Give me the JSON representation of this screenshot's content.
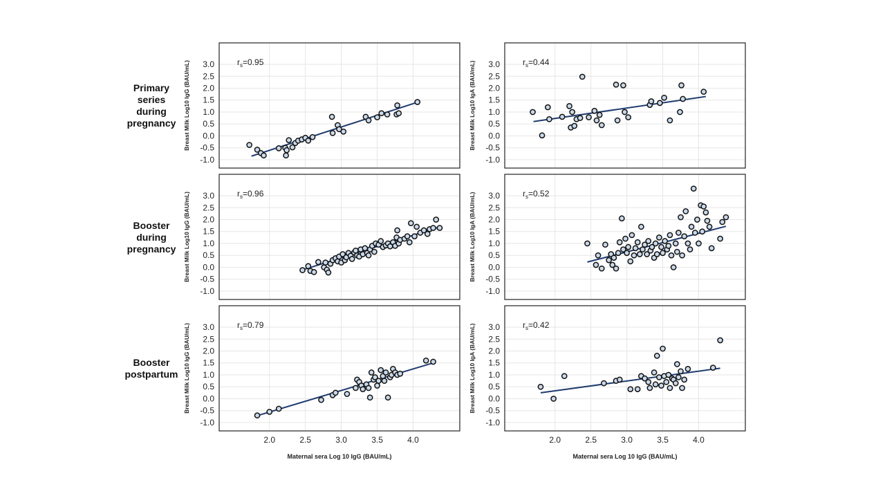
{
  "row_labels": [
    "Primary\nseries\nduring\npregnancy",
    "Booster\nduring\npregnancy",
    "Booster\npostpartum"
  ],
  "x_axis_title": "Maternal sera Log 10 IgG (BAU/mL)",
  "colors": {
    "marker_fill": "#c9d9ea",
    "marker_stroke": "#111111",
    "fit_line": "#1f3b6e",
    "grid": "#e6e6e6",
    "frame": "#222222"
  },
  "chart_data": [
    {
      "type": "scatter",
      "row": 0,
      "col": 0,
      "ylabel": "Breast Milk Log10 IgG (BAU/mL)",
      "annotation": {
        "r_label": "r",
        "r_sub": "s",
        "value": "=0.95"
      },
      "xlim": [
        1.3,
        4.65
      ],
      "ylim": [
        -1.35,
        3.9
      ],
      "xticks": [
        2.0,
        2.5,
        3.0,
        3.5,
        4.0
      ],
      "yticks": [
        -1.0,
        -0.5,
        0.0,
        0.5,
        1.0,
        1.5,
        2.0,
        2.5,
        3.0
      ],
      "fit": [
        [
          1.75,
          -0.85
        ],
        [
          4.05,
          1.4
        ]
      ],
      "points": [
        [
          1.72,
          -0.38
        ],
        [
          1.83,
          -0.58
        ],
        [
          1.88,
          -0.72
        ],
        [
          1.92,
          -0.82
        ],
        [
          2.13,
          -0.52
        ],
        [
          2.22,
          -0.5
        ],
        [
          2.23,
          -0.82
        ],
        [
          2.24,
          -0.6
        ],
        [
          2.27,
          -0.18
        ],
        [
          2.32,
          -0.48
        ],
        [
          2.36,
          -0.3
        ],
        [
          2.4,
          -0.2
        ],
        [
          2.45,
          -0.15
        ],
        [
          2.5,
          -0.08
        ],
        [
          2.54,
          -0.2
        ],
        [
          2.6,
          -0.05
        ],
        [
          2.87,
          0.8
        ],
        [
          2.88,
          0.12
        ],
        [
          2.95,
          0.45
        ],
        [
          2.97,
          0.28
        ],
        [
          3.03,
          0.18
        ],
        [
          3.34,
          0.8
        ],
        [
          3.38,
          0.65
        ],
        [
          3.5,
          0.78
        ],
        [
          3.56,
          0.95
        ],
        [
          3.64,
          0.9
        ],
        [
          3.77,
          0.9
        ],
        [
          3.78,
          1.28
        ],
        [
          3.8,
          0.95
        ],
        [
          4.06,
          1.42
        ]
      ]
    },
    {
      "type": "scatter",
      "row": 0,
      "col": 1,
      "ylabel": "Breast Milk Log10 IgA (BAU/mL)",
      "annotation": {
        "r_label": "r",
        "r_sub": "s",
        "value": "=0.44"
      },
      "xlim": [
        1.3,
        4.65
      ],
      "ylim": [
        -1.35,
        3.9
      ],
      "xticks": [
        2.0,
        2.5,
        3.0,
        3.5,
        4.0
      ],
      "yticks": [
        -1.0,
        -0.5,
        0.0,
        0.5,
        1.0,
        1.5,
        2.0,
        2.5,
        3.0
      ],
      "fit": [
        [
          1.7,
          0.6
        ],
        [
          4.1,
          1.65
        ]
      ],
      "points": [
        [
          1.69,
          1.0
        ],
        [
          1.82,
          0.02
        ],
        [
          1.9,
          1.2
        ],
        [
          1.92,
          0.7
        ],
        [
          2.1,
          0.8
        ],
        [
          2.2,
          1.25
        ],
        [
          2.22,
          0.35
        ],
        [
          2.24,
          1.0
        ],
        [
          2.27,
          0.42
        ],
        [
          2.3,
          0.7
        ],
        [
          2.35,
          0.75
        ],
        [
          2.38,
          2.48
        ],
        [
          2.47,
          0.78
        ],
        [
          2.55,
          1.05
        ],
        [
          2.58,
          0.65
        ],
        [
          2.62,
          0.88
        ],
        [
          2.65,
          0.45
        ],
        [
          2.85,
          2.15
        ],
        [
          2.87,
          0.65
        ],
        [
          2.95,
          2.12
        ],
        [
          2.97,
          1.0
        ],
        [
          3.02,
          0.78
        ],
        [
          3.32,
          1.3
        ],
        [
          3.34,
          1.45
        ],
        [
          3.46,
          1.38
        ],
        [
          3.52,
          1.6
        ],
        [
          3.6,
          0.65
        ],
        [
          3.74,
          1.0
        ],
        [
          3.76,
          2.12
        ],
        [
          3.78,
          1.55
        ],
        [
          4.07,
          1.85
        ]
      ]
    },
    {
      "type": "scatter",
      "row": 1,
      "col": 0,
      "ylabel": "Breast Milk Log10 IgG (BAU/mL)",
      "annotation": {
        "r_label": "r",
        "r_sub": "s",
        "value": "=0.96"
      },
      "xlim": [
        1.3,
        4.65
      ],
      "ylim": [
        -1.35,
        3.9
      ],
      "xticks": [
        2.0,
        2.5,
        3.0,
        3.5,
        4.0
      ],
      "yticks": [
        -1.0,
        -0.5,
        0.0,
        0.5,
        1.0,
        1.5,
        2.0,
        2.5,
        3.0
      ],
      "fit": [
        [
          2.45,
          -0.12
        ],
        [
          4.4,
          1.72
        ]
      ],
      "points": [
        [
          2.46,
          -0.12
        ],
        [
          2.54,
          0.05
        ],
        [
          2.57,
          -0.15
        ],
        [
          2.62,
          -0.2
        ],
        [
          2.68,
          0.22
        ],
        [
          2.76,
          0.0
        ],
        [
          2.78,
          0.2
        ],
        [
          2.8,
          -0.1
        ],
        [
          2.82,
          -0.22
        ],
        [
          2.85,
          0.15
        ],
        [
          2.88,
          0.3
        ],
        [
          2.92,
          0.38
        ],
        [
          2.95,
          0.25
        ],
        [
          2.97,
          0.45
        ],
        [
          3.0,
          0.2
        ],
        [
          3.02,
          0.55
        ],
        [
          3.05,
          0.3
        ],
        [
          3.07,
          0.42
        ],
        [
          3.1,
          0.6
        ],
        [
          3.13,
          0.48
        ],
        [
          3.15,
          0.35
        ],
        [
          3.18,
          0.62
        ],
        [
          3.2,
          0.7
        ],
        [
          3.22,
          0.5
        ],
        [
          3.25,
          0.45
        ],
        [
          3.27,
          0.75
        ],
        [
          3.3,
          0.55
        ],
        [
          3.33,
          0.8
        ],
        [
          3.36,
          0.6
        ],
        [
          3.38,
          0.5
        ],
        [
          3.4,
          0.75
        ],
        [
          3.43,
          0.9
        ],
        [
          3.46,
          0.65
        ],
        [
          3.48,
          1.0
        ],
        [
          3.52,
          0.95
        ],
        [
          3.55,
          1.1
        ],
        [
          3.58,
          0.85
        ],
        [
          3.62,
          0.92
        ],
        [
          3.65,
          1.0
        ],
        [
          3.68,
          0.88
        ],
        [
          3.72,
          1.05
        ],
        [
          3.75,
          0.9
        ],
        [
          3.77,
          1.25
        ],
        [
          3.78,
          1.55
        ],
        [
          3.8,
          1.0
        ],
        [
          3.82,
          1.15
        ],
        [
          3.88,
          1.2
        ],
        [
          3.92,
          1.3
        ],
        [
          3.95,
          1.05
        ],
        [
          3.97,
          1.85
        ],
        [
          4.02,
          1.3
        ],
        [
          4.05,
          1.7
        ],
        [
          4.1,
          1.45
        ],
        [
          4.15,
          1.55
        ],
        [
          4.2,
          1.4
        ],
        [
          4.23,
          1.6
        ],
        [
          4.28,
          1.65
        ],
        [
          4.32,
          2.0
        ],
        [
          4.37,
          1.65
        ]
      ]
    },
    {
      "type": "scatter",
      "row": 1,
      "col": 1,
      "ylabel": "Breast Milk Log10 IgA (BAU/mL)",
      "annotation": {
        "r_label": "r",
        "r_sub": "s",
        "value": "=0.52"
      },
      "xlim": [
        1.3,
        4.65
      ],
      "ylim": [
        -1.35,
        3.9
      ],
      "xticks": [
        2.0,
        2.5,
        3.0,
        3.5,
        4.0
      ],
      "yticks": [
        -1.0,
        -0.5,
        0.0,
        0.5,
        1.0,
        1.5,
        2.0,
        2.5,
        3.0
      ],
      "fit": [
        [
          2.45,
          0.22
        ],
        [
          4.38,
          1.72
        ]
      ],
      "points": [
        [
          2.45,
          1.0
        ],
        [
          2.57,
          0.1
        ],
        [
          2.6,
          0.5
        ],
        [
          2.65,
          -0.05
        ],
        [
          2.7,
          0.95
        ],
        [
          2.75,
          0.3
        ],
        [
          2.78,
          0.55
        ],
        [
          2.8,
          0.1
        ],
        [
          2.82,
          0.4
        ],
        [
          2.85,
          -0.05
        ],
        [
          2.88,
          0.6
        ],
        [
          2.9,
          1.05
        ],
        [
          2.93,
          2.05
        ],
        [
          2.95,
          0.75
        ],
        [
          2.98,
          1.2
        ],
        [
          3.0,
          0.6
        ],
        [
          3.02,
          0.85
        ],
        [
          3.05,
          0.25
        ],
        [
          3.07,
          1.35
        ],
        [
          3.1,
          0.5
        ],
        [
          3.12,
          0.8
        ],
        [
          3.15,
          1.05
        ],
        [
          3.18,
          0.55
        ],
        [
          3.2,
          1.7
        ],
        [
          3.22,
          0.75
        ],
        [
          3.25,
          0.95
        ],
        [
          3.28,
          0.55
        ],
        [
          3.3,
          1.1
        ],
        [
          3.33,
          0.7
        ],
        [
          3.35,
          0.85
        ],
        [
          3.38,
          0.4
        ],
        [
          3.4,
          1.0
        ],
        [
          3.42,
          0.55
        ],
        [
          3.45,
          1.25
        ],
        [
          3.48,
          0.85
        ],
        [
          3.5,
          0.6
        ],
        [
          3.53,
          1.1
        ],
        [
          3.56,
          0.75
        ],
        [
          3.58,
          0.9
        ],
        [
          3.6,
          1.35
        ],
        [
          3.62,
          0.5
        ],
        [
          3.65,
          0.0
        ],
        [
          3.68,
          1.0
        ],
        [
          3.7,
          0.65
        ],
        [
          3.72,
          1.45
        ],
        [
          3.75,
          2.1
        ],
        [
          3.77,
          0.5
        ],
        [
          3.8,
          1.3
        ],
        [
          3.82,
          2.35
        ],
        [
          3.85,
          1.0
        ],
        [
          3.88,
          0.75
        ],
        [
          3.9,
          1.7
        ],
        [
          3.93,
          3.3
        ],
        [
          3.95,
          1.45
        ],
        [
          3.98,
          2.0
        ],
        [
          4.0,
          1.0
        ],
        [
          4.03,
          2.6
        ],
        [
          4.05,
          1.5
        ],
        [
          4.07,
          2.55
        ],
        [
          4.1,
          2.3
        ],
        [
          4.12,
          1.95
        ],
        [
          4.15,
          1.7
        ],
        [
          4.18,
          0.8
        ],
        [
          4.3,
          1.2
        ],
        [
          4.33,
          1.9
        ],
        [
          4.38,
          2.1
        ]
      ]
    },
    {
      "type": "scatter",
      "row": 2,
      "col": 0,
      "ylabel": "Breast Milk Log10 IgG (BAU/mL)",
      "annotation": {
        "r_label": "r",
        "r_sub": "s",
        "value": "=0.79"
      },
      "xlim": [
        1.3,
        4.65
      ],
      "ylim": [
        -1.35,
        3.9
      ],
      "xticks": [
        2.0,
        2.5,
        3.0,
        3.5,
        4.0
      ],
      "yticks": [
        -1.0,
        -0.5,
        0.0,
        0.5,
        1.0,
        1.5,
        2.0,
        2.5,
        3.0
      ],
      "fit": [
        [
          1.82,
          -0.72
        ],
        [
          4.3,
          1.52
        ]
      ],
      "points": [
        [
          1.83,
          -0.7
        ],
        [
          2.0,
          -0.55
        ],
        [
          2.13,
          -0.42
        ],
        [
          2.72,
          -0.05
        ],
        [
          2.88,
          0.15
        ],
        [
          2.92,
          0.25
        ],
        [
          3.08,
          0.2
        ],
        [
          3.2,
          0.45
        ],
        [
          3.22,
          0.8
        ],
        [
          3.25,
          0.7
        ],
        [
          3.28,
          0.55
        ],
        [
          3.3,
          0.4
        ],
        [
          3.35,
          0.6
        ],
        [
          3.38,
          0.45
        ],
        [
          3.4,
          0.05
        ],
        [
          3.42,
          1.1
        ],
        [
          3.45,
          0.8
        ],
        [
          3.47,
          0.9
        ],
        [
          3.5,
          0.55
        ],
        [
          3.52,
          0.75
        ],
        [
          3.55,
          1.2
        ],
        [
          3.58,
          0.95
        ],
        [
          3.6,
          0.75
        ],
        [
          3.62,
          1.1
        ],
        [
          3.65,
          0.05
        ],
        [
          3.68,
          0.9
        ],
        [
          3.7,
          1.0
        ],
        [
          3.72,
          1.25
        ],
        [
          3.75,
          1.1
        ],
        [
          3.78,
          1.0
        ],
        [
          3.82,
          1.05
        ],
        [
          4.18,
          1.6
        ],
        [
          4.28,
          1.55
        ]
      ]
    },
    {
      "type": "scatter",
      "row": 2,
      "col": 1,
      "ylabel": "Breast Milk Log10 IgA (BAU/mL)",
      "annotation": {
        "r_label": "r",
        "r_sub": "s",
        "value": "=0.42"
      },
      "xlim": [
        1.3,
        4.65
      ],
      "ylim": [
        -1.35,
        3.9
      ],
      "xticks": [
        2.0,
        2.5,
        3.0,
        3.5,
        4.0
      ],
      "yticks": [
        -1.0,
        -0.5,
        0.0,
        0.5,
        1.0,
        1.5,
        2.0,
        2.5,
        3.0
      ],
      "fit": [
        [
          1.8,
          0.25
        ],
        [
          4.3,
          1.28
        ]
      ],
      "points": [
        [
          1.8,
          0.5
        ],
        [
          1.98,
          0.0
        ],
        [
          2.13,
          0.95
        ],
        [
          2.68,
          0.65
        ],
        [
          2.85,
          0.75
        ],
        [
          2.9,
          0.8
        ],
        [
          3.05,
          0.4
        ],
        [
          3.15,
          0.4
        ],
        [
          3.2,
          0.95
        ],
        [
          3.25,
          0.85
        ],
        [
          3.3,
          0.7
        ],
        [
          3.32,
          0.45
        ],
        [
          3.38,
          1.1
        ],
        [
          3.4,
          0.6
        ],
        [
          3.42,
          1.8
        ],
        [
          3.45,
          0.9
        ],
        [
          3.48,
          0.55
        ],
        [
          3.5,
          2.1
        ],
        [
          3.52,
          0.95
        ],
        [
          3.55,
          0.7
        ],
        [
          3.58,
          1.0
        ],
        [
          3.6,
          0.45
        ],
        [
          3.63,
          0.85
        ],
        [
          3.65,
          0.8
        ],
        [
          3.68,
          0.65
        ],
        [
          3.7,
          1.45
        ],
        [
          3.72,
          0.9
        ],
        [
          3.75,
          1.15
        ],
        [
          3.77,
          0.45
        ],
        [
          3.8,
          0.8
        ],
        [
          3.85,
          1.25
        ],
        [
          4.2,
          1.3
        ],
        [
          4.3,
          2.45
        ]
      ]
    }
  ]
}
